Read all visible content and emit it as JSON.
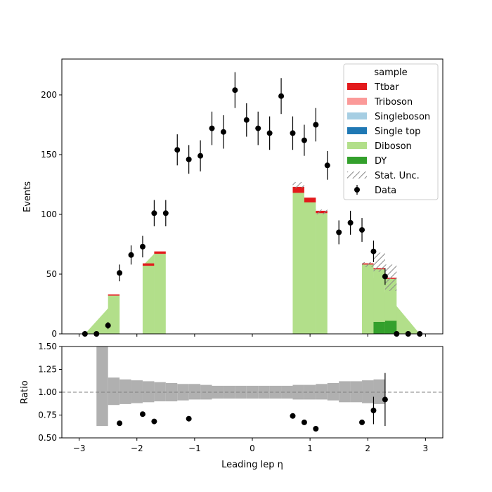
{
  "chart_data": {
    "type": "bar",
    "xlabel": "Leading lep η",
    "x_range": [
      -3.3,
      3.3
    ],
    "x_ticks": [
      -3,
      -2,
      -1,
      0,
      1,
      2,
      3
    ],
    "top_panel": {
      "ylabel": "Events",
      "ylim": [
        0,
        230
      ],
      "y_ticks": [
        0,
        50,
        100,
        150,
        200
      ],
      "legend": {
        "title": "sample",
        "placement": "top-right",
        "entries": [
          {
            "label": "Ttbar",
            "color": "#e31a1c",
            "kind": "patch"
          },
          {
            "label": "Triboson",
            "color": "#fb9a99",
            "kind": "patch"
          },
          {
            "label": "Singleboson",
            "color": "#a6cee3",
            "kind": "patch"
          },
          {
            "label": "Single top",
            "color": "#1f78b4",
            "kind": "patch"
          },
          {
            "label": "Diboson",
            "color": "#b2df8a",
            "kind": "patch"
          },
          {
            "label": "DY",
            "color": "#33a02c",
            "kind": "patch"
          },
          {
            "label": "Stat. Unc.",
            "color": "#888888",
            "kind": "hatch"
          },
          {
            "label": "Data",
            "color": "#000000",
            "kind": "errorbar"
          }
        ]
      },
      "data": {
        "x": [
          -2.9,
          -2.7,
          -2.5,
          -2.3,
          -2.1,
          -1.9,
          -1.7,
          -1.5,
          -1.3,
          -1.1,
          -0.9,
          -0.7,
          -0.5,
          -0.3,
          -0.1,
          0.1,
          0.3,
          0.5,
          0.7,
          0.9,
          1.1,
          1.3,
          1.5,
          1.7,
          1.9,
          2.1,
          2.3,
          2.5,
          2.7,
          2.9
        ],
        "y": [
          0,
          0,
          7,
          51,
          66,
          73,
          101,
          101,
          154,
          146,
          149,
          172,
          169,
          204,
          179,
          172,
          168,
          199,
          168,
          162,
          175,
          141,
          85,
          93,
          87,
          69,
          48,
          0,
          0,
          0
        ],
        "yerr": [
          0,
          0,
          3,
          7,
          8,
          9,
          11,
          11,
          13,
          12,
          13,
          14,
          14,
          15,
          14,
          14,
          14,
          15,
          14,
          13,
          14,
          12,
          10,
          10,
          10,
          9,
          7,
          0,
          0,
          0
        ]
      },
      "mc_segments": [
        {
          "x_range": [
            -2.9,
            -2.3
          ],
          "y_range": [
            0,
            32
          ]
        },
        {
          "x_range": [
            -1.9,
            -1.7
          ],
          "y_range": [
            57,
            67
          ]
        },
        {
          "x_range": [
            0.7,
            1.1
          ],
          "y_range": [
            121,
            101
          ]
        },
        {
          "x_range": [
            1.9,
            2.9
          ],
          "y_range": [
            58,
            0
          ]
        }
      ],
      "mc_stack_bins": [
        {
          "x": [
            -2.5,
            -2.3
          ],
          "components": {
            "Diboson": 32,
            "Ttbar": 1
          }
        },
        {
          "x": [
            -1.9,
            -1.7
          ],
          "components": {
            "Diboson": 57,
            "Ttbar": 2
          }
        },
        {
          "x": [
            -1.7,
            -1.5
          ],
          "components": {
            "Diboson": 67,
            "Ttbar": 2
          }
        },
        {
          "x": [
            0.7,
            0.9
          ],
          "components": {
            "Diboson": 118,
            "Ttbar": 5
          }
        },
        {
          "x": [
            0.9,
            1.1
          ],
          "components": {
            "Diboson": 110,
            "Ttbar": 4
          }
        },
        {
          "x": [
            1.1,
            1.3
          ],
          "components": {
            "Diboson": 101,
            "Ttbar": 2
          }
        },
        {
          "x": [
            1.9,
            2.1
          ],
          "components": {
            "Diboson": 58,
            "Ttbar": 1
          }
        },
        {
          "x": [
            2.1,
            2.3
          ],
          "components": {
            "DY": 10,
            "Diboson": 44,
            "Ttbar": 1
          }
        },
        {
          "x": [
            2.3,
            2.5
          ],
          "components": {
            "DY": 11,
            "Diboson": 35,
            "Ttbar": 1
          }
        }
      ],
      "stat_unc_bins": [
        {
          "x": [
            0.7,
            0.9
          ],
          "low": 122,
          "high": 127
        },
        {
          "x": [
            1.1,
            1.3
          ],
          "low": 100,
          "high": 104
        },
        {
          "x": [
            1.9,
            2.1
          ],
          "low": 56,
          "high": 60
        },
        {
          "x": [
            2.1,
            2.3
          ],
          "low": 52,
          "high": 68
        },
        {
          "x": [
            2.3,
            2.5
          ],
          "low": 36,
          "high": 58
        }
      ]
    },
    "ratio_panel": {
      "ylabel": "Ratio",
      "ylim": [
        0.5,
        1.5
      ],
      "y_ticks": [
        "0.50",
        "0.75",
        "1.00",
        "1.25",
        "1.50"
      ],
      "reference_line": 1.0,
      "unc_band": [
        {
          "x": [
            -2.7,
            -2.5
          ],
          "low": 0.63,
          "high": 1.5
        },
        {
          "x": [
            -2.5,
            -2.3
          ],
          "low": 0.86,
          "high": 1.16
        },
        {
          "x": [
            -2.3,
            -2.1
          ],
          "low": 0.87,
          "high": 1.14
        },
        {
          "x": [
            -2.1,
            -1.9
          ],
          "low": 0.88,
          "high": 1.13
        },
        {
          "x": [
            -1.9,
            -1.7
          ],
          "low": 0.89,
          "high": 1.12
        },
        {
          "x": [
            -1.7,
            -1.5
          ],
          "low": 0.9,
          "high": 1.11
        },
        {
          "x": [
            -1.5,
            -1.3
          ],
          "low": 0.9,
          "high": 1.1
        },
        {
          "x": [
            -1.3,
            -1.1
          ],
          "low": 0.91,
          "high": 1.09
        },
        {
          "x": [
            -1.1,
            -0.9
          ],
          "low": 0.92,
          "high": 1.09
        },
        {
          "x": [
            -0.9,
            -0.7
          ],
          "low": 0.92,
          "high": 1.08
        },
        {
          "x": [
            -0.7,
            -0.5
          ],
          "low": 0.93,
          "high": 1.07
        },
        {
          "x": [
            -0.5,
            -0.3
          ],
          "low": 0.93,
          "high": 1.07
        },
        {
          "x": [
            -0.3,
            -0.1
          ],
          "low": 0.93,
          "high": 1.07
        },
        {
          "x": [
            -0.1,
            0.1
          ],
          "low": 0.93,
          "high": 1.07
        },
        {
          "x": [
            0.1,
            0.3
          ],
          "low": 0.93,
          "high": 1.07
        },
        {
          "x": [
            0.3,
            0.5
          ],
          "low": 0.93,
          "high": 1.07
        },
        {
          "x": [
            0.5,
            0.7
          ],
          "low": 0.93,
          "high": 1.07
        },
        {
          "x": [
            0.7,
            0.9
          ],
          "low": 0.92,
          "high": 1.08
        },
        {
          "x": [
            0.9,
            1.1
          ],
          "low": 0.92,
          "high": 1.08
        },
        {
          "x": [
            1.1,
            1.3
          ],
          "low": 0.92,
          "high": 1.09
        },
        {
          "x": [
            1.3,
            1.5
          ],
          "low": 0.91,
          "high": 1.1
        },
        {
          "x": [
            1.5,
            1.7
          ],
          "low": 0.89,
          "high": 1.12
        },
        {
          "x": [
            1.7,
            1.9
          ],
          "low": 0.89,
          "high": 1.12
        },
        {
          "x": [
            1.9,
            2.1
          ],
          "low": 0.88,
          "high": 1.13
        },
        {
          "x": [
            2.1,
            2.3
          ],
          "low": 0.87,
          "high": 1.14
        }
      ],
      "points": {
        "x": [
          -2.3,
          -1.9,
          -1.7,
          -1.1,
          0.7,
          0.9,
          1.1,
          1.9,
          2.1,
          2.3
        ],
        "y": [
          0.66,
          0.76,
          0.68,
          0.71,
          0.74,
          0.67,
          0.6,
          0.67,
          0.8,
          0.92
        ],
        "yerr": [
          0,
          0,
          0,
          0,
          0,
          0,
          0,
          0,
          0.15,
          0.29
        ]
      }
    }
  }
}
